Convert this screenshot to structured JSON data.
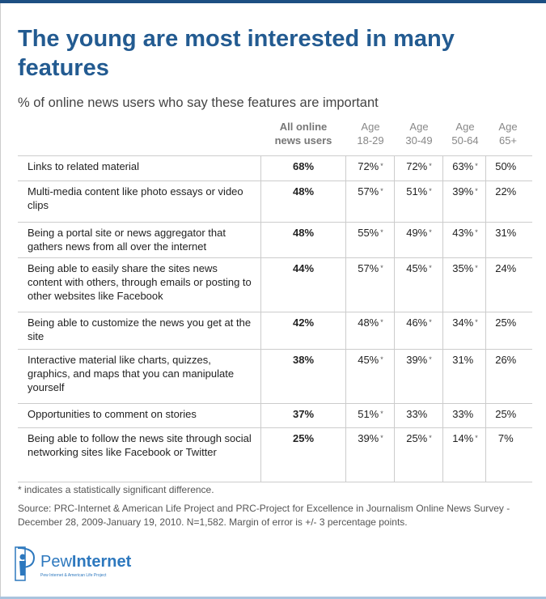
{
  "title": "The young are most interested in many features",
  "subtitle": "% of online news users who say these features are important",
  "chart_data": {
    "type": "table",
    "columns": [
      "All online news users",
      "Age 18-29",
      "Age 30-49",
      "Age 50-64",
      "Age 65+"
    ],
    "column_headers": [
      {
        "line1": "All online",
        "line2": "news users"
      },
      {
        "line1": "Age",
        "line2": "18-29"
      },
      {
        "line1": "Age",
        "line2": "30-49"
      },
      {
        "line1": "Age",
        "line2": "50-64"
      },
      {
        "line1": "Age",
        "line2": "65+"
      }
    ],
    "rows": [
      {
        "label": "Links to related material",
        "values": [
          "68%",
          "72%",
          "72%",
          "63%",
          "50%"
        ],
        "significant": [
          false,
          true,
          true,
          true,
          false
        ]
      },
      {
        "label": "Multi-media content like photo essays or video clips",
        "values": [
          "48%",
          "57%",
          "51%",
          "39%",
          "22%"
        ],
        "significant": [
          false,
          true,
          true,
          true,
          false
        ]
      },
      {
        "label": "Being a portal site or news aggregator that gathers news from all over the internet",
        "values": [
          "48%",
          "55%",
          "49%",
          "43%",
          "31%"
        ],
        "significant": [
          false,
          true,
          true,
          true,
          false
        ]
      },
      {
        "label": "Being able to easily share the sites news content with others, through emails or posting to other websites like Facebook",
        "values": [
          "44%",
          "57%",
          "45%",
          "35%",
          "24%"
        ],
        "significant": [
          false,
          true,
          true,
          true,
          false
        ]
      },
      {
        "label": "Being able to customize the news you get at the site",
        "values": [
          "42%",
          "48%",
          "46%",
          "34%",
          "25%"
        ],
        "significant": [
          false,
          true,
          true,
          true,
          false
        ]
      },
      {
        "label": "Interactive material like charts, quizzes, graphics, and maps that you can manipulate yourself",
        "values": [
          "38%",
          "45%",
          "39%",
          "31%",
          "26%"
        ],
        "significant": [
          false,
          true,
          true,
          false,
          false
        ]
      },
      {
        "label": "Opportunities to comment on stories",
        "values": [
          "37%",
          "51%",
          "33%",
          "33%",
          "25%"
        ],
        "significant": [
          false,
          true,
          false,
          false,
          false
        ]
      },
      {
        "label": "Being able to follow the news site through social networking sites like Facebook or Twitter",
        "values": [
          "25%",
          "39%",
          "25%",
          "14%",
          "7%"
        ],
        "significant": [
          false,
          true,
          true,
          true,
          false
        ]
      }
    ],
    "significance_marker": "*"
  },
  "footnote": "* indicates a statistically significant difference.",
  "source": "Source: PRC-Internet & American Life Project and PRC-Project for Excellence in Journalism Online News Survey - December 28, 2009-January 19, 2010. N=1,582. Margin of error is +/- 3 percentage points.",
  "logo": {
    "name_light": "Pew",
    "name_bold": "Internet",
    "tagline": "Pew Internet & American Life Project"
  },
  "colors": {
    "title": "#235b91",
    "topbar": "#1d4f82",
    "logo": "#2d78be"
  }
}
